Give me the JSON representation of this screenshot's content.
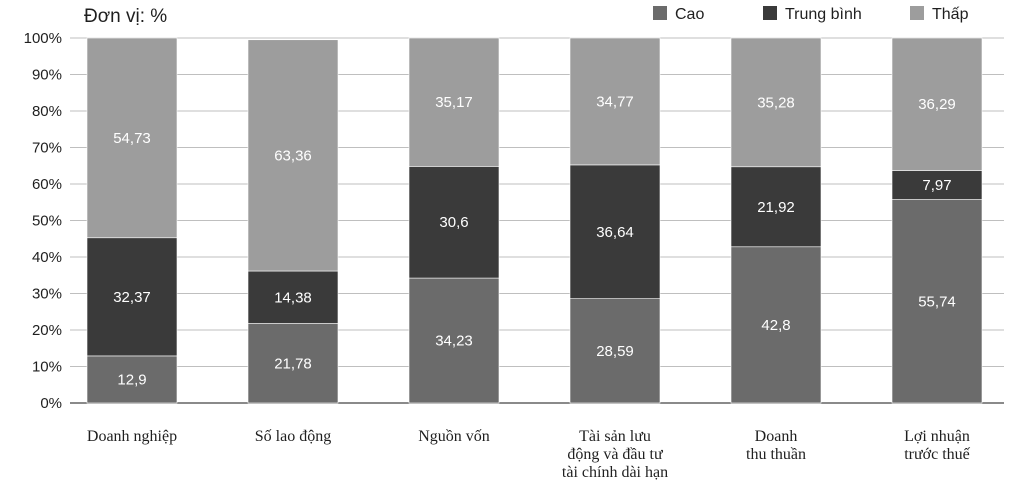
{
  "chart_data": {
    "type": "bar",
    "stacked": true,
    "unit_label": "Đơn vị: %",
    "title": "",
    "xlabel": "",
    "ylabel": "",
    "ylim": [
      0,
      100
    ],
    "y_ticks": [
      "0%",
      "10%",
      "20%",
      "30%",
      "40%",
      "50%",
      "60%",
      "70%",
      "80%",
      "90%",
      "100%"
    ],
    "legend_position": "top-right",
    "grid": "horizontal",
    "categories": [
      [
        "Doanh nghiệp"
      ],
      [
        "Số lao động"
      ],
      [
        "Nguồn vốn"
      ],
      [
        "Tài sản lưu",
        "động và đầu tư",
        "tài chính dài hạn"
      ],
      [
        "Doanh",
        "thu thuần"
      ],
      [
        "Lợi nhuận",
        "trước thuế"
      ]
    ],
    "series": [
      {
        "name": "Cao",
        "color": "#6b6b6b",
        "values": [
          12.9,
          21.78,
          34.23,
          28.59,
          42.8,
          55.74
        ],
        "labels": [
          "12,9",
          "21,78",
          "34,23",
          "28,59",
          "42,8",
          "55,74"
        ]
      },
      {
        "name": "Trung bình",
        "color": "#3a3a3a",
        "values": [
          32.37,
          14.38,
          30.6,
          36.64,
          21.92,
          7.97
        ],
        "labels": [
          "32,37",
          "14,38",
          "30,6",
          "36,64",
          "21,92",
          "7,97"
        ]
      },
      {
        "name": "Thấp",
        "color": "#9d9d9d",
        "values": [
          54.73,
          63.36,
          35.17,
          34.77,
          35.28,
          36.29
        ],
        "labels": [
          "54,73",
          "63,36",
          "35,17",
          "34,77",
          "35,28",
          "36,29"
        ]
      }
    ]
  }
}
